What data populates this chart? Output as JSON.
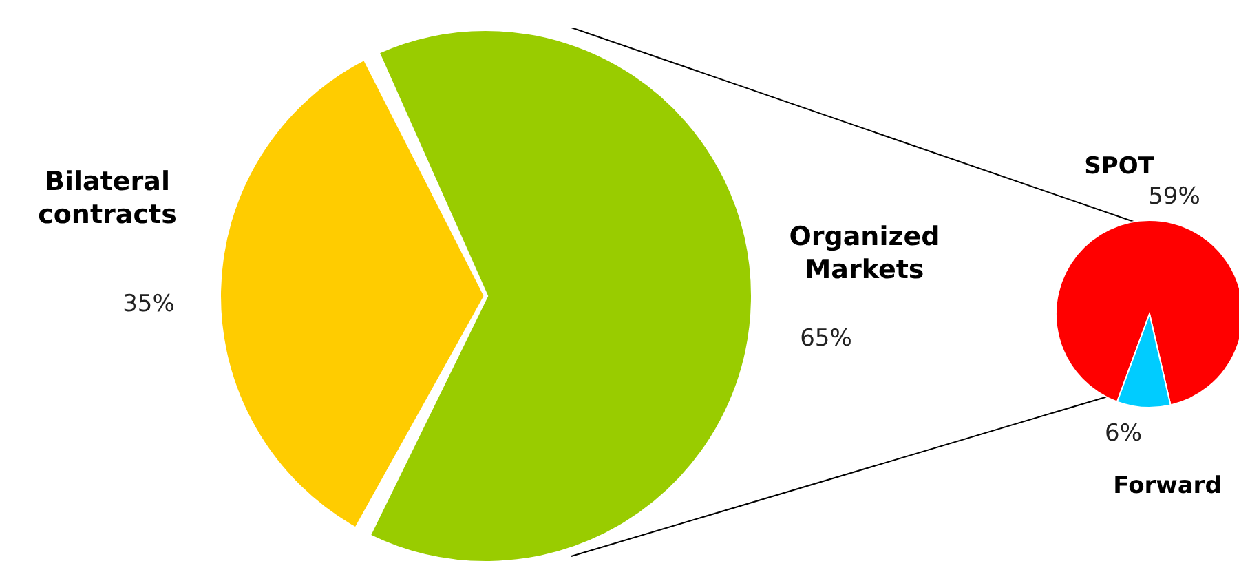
{
  "chart_data": [
    {
      "type": "pie",
      "categories": [
        "Bilateral contracts",
        "Organized Markets"
      ],
      "values": [
        35,
        65
      ],
      "value_labels": [
        "35%",
        "65%"
      ],
      "colors": [
        "#ffcc00",
        "#99cc00"
      ]
    },
    {
      "type": "pie",
      "categories": [
        "SPOT",
        "Forward"
      ],
      "values": [
        59,
        6
      ],
      "value_labels": [
        "59%",
        "6%"
      ],
      "colors": [
        "#ff0000",
        "#00ccff"
      ]
    }
  ]
}
